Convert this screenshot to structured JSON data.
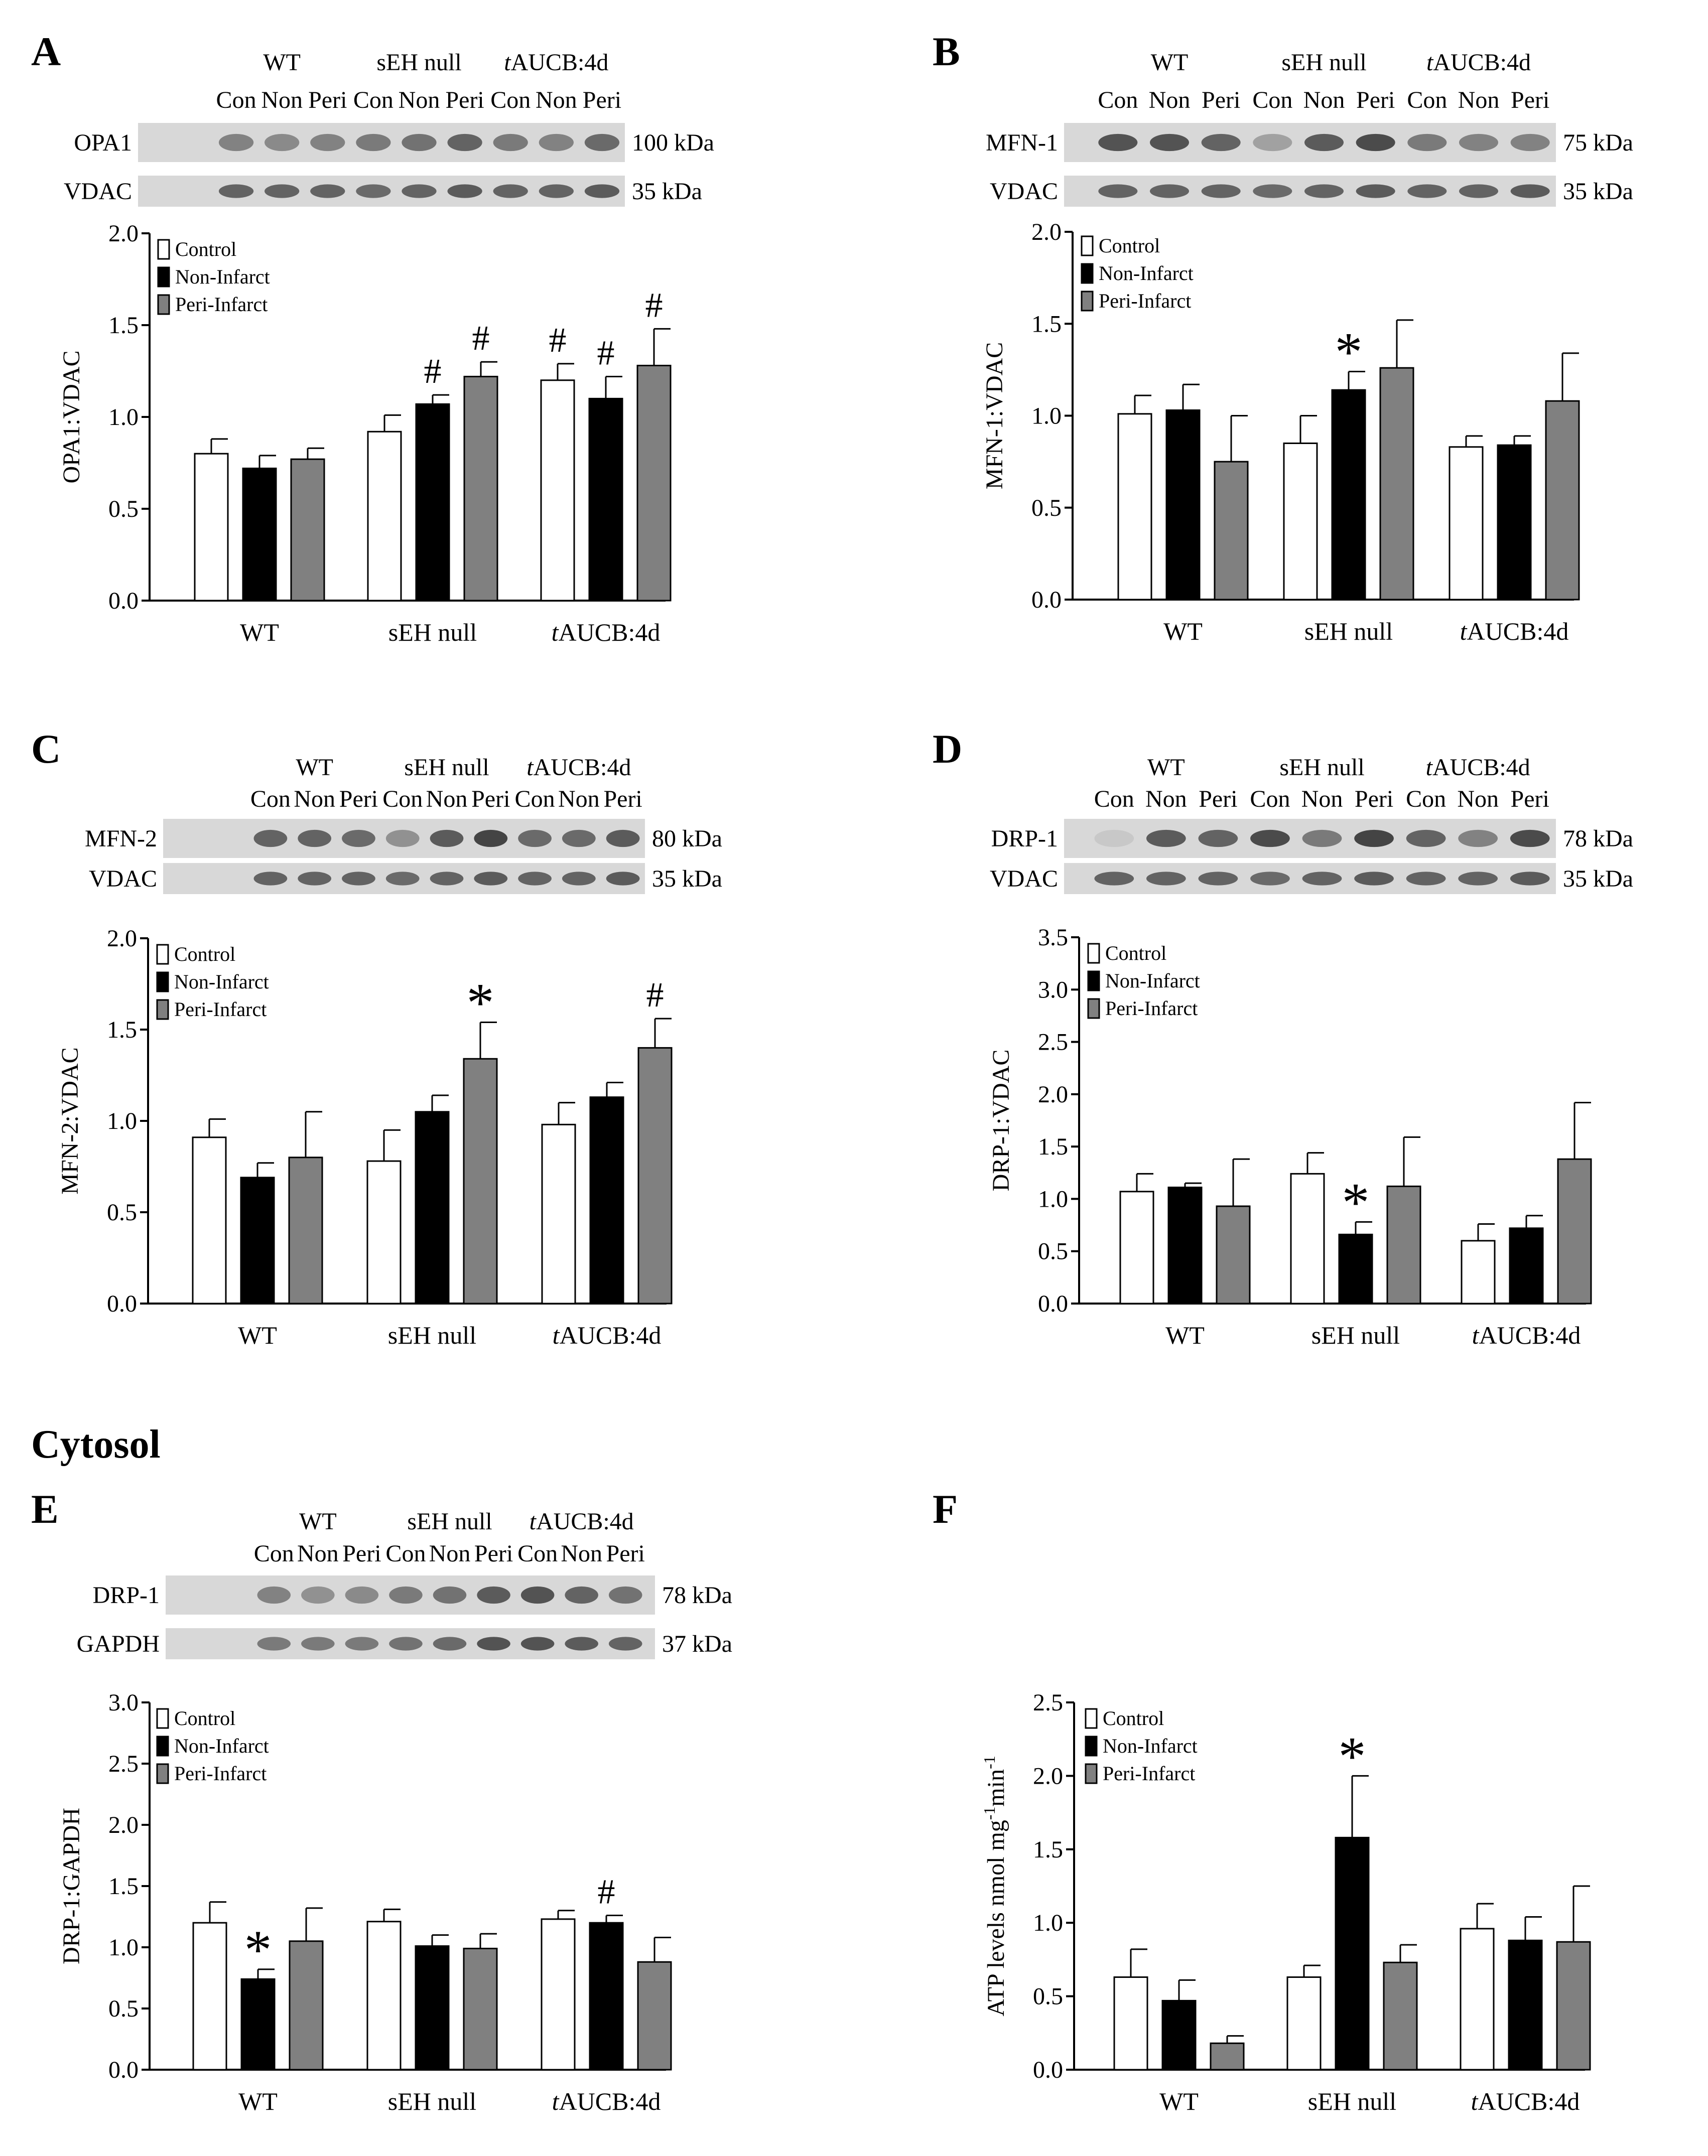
{
  "section_title": "Cytosol",
  "blot_colors": {
    "band": "#3c3c3c",
    "background": "#d8d8d8"
  },
  "legend": [
    {
      "label": "Control",
      "color": "#ffffff"
    },
    {
      "label": "Non-Infarct",
      "color": "#000000"
    },
    {
      "label": "Peri-Infarct",
      "color": "#808080"
    }
  ],
  "chart_data": [
    {
      "panel": "A",
      "type": "bar",
      "groups": [
        [
          "WT",
          ""
        ],
        [
          "sEH null",
          ""
        ],
        [
          "t",
          "AUCB:4d"
        ]
      ],
      "lanes": [
        "Con",
        "Non",
        "Peri"
      ],
      "blots": [
        {
          "label": "OPA1",
          "kda": "100 kDa",
          "intensity": [
            0.55,
            0.5,
            0.55,
            0.6,
            0.65,
            0.75,
            0.6,
            0.55,
            0.7
          ]
        },
        {
          "label": "VDAC",
          "kda": "35 kDa",
          "intensity": [
            0.75,
            0.75,
            0.75,
            0.7,
            0.75,
            0.8,
            0.75,
            0.75,
            0.8
          ]
        }
      ],
      "ylabel": "OPA1:VDAC",
      "ylim": [
        0,
        2.0
      ],
      "ticks": [
        "0.0",
        "0.5",
        "1.0",
        "1.5",
        "2.0"
      ],
      "xcats": [
        [
          "WT",
          ""
        ],
        [
          "sEH null",
          ""
        ],
        [
          "t",
          "AUCB:4d"
        ]
      ],
      "series": [
        {
          "name": "Control",
          "values": [
            0.8,
            0.92,
            1.2
          ],
          "errors": [
            0.08,
            0.09,
            0.09
          ]
        },
        {
          "name": "Non-Infarct",
          "values": [
            0.72,
            1.07,
            1.1
          ],
          "errors": [
            0.07,
            0.05,
            0.12
          ]
        },
        {
          "name": "Peri-Infarct",
          "values": [
            0.77,
            1.22,
            1.28
          ],
          "errors": [
            0.06,
            0.08,
            0.2
          ]
        }
      ],
      "marks": [
        {
          "group": 1,
          "series": 1,
          "symbol": "#"
        },
        {
          "group": 1,
          "series": 2,
          "symbol": "#"
        },
        {
          "group": 2,
          "series": 0,
          "symbol": "#"
        },
        {
          "group": 2,
          "series": 1,
          "symbol": "#"
        },
        {
          "group": 2,
          "series": 2,
          "symbol": "#"
        }
      ]
    },
    {
      "panel": "B",
      "type": "bar",
      "groups": [
        [
          "WT",
          ""
        ],
        [
          "sEH null",
          ""
        ],
        [
          "t",
          "AUCB:4d"
        ]
      ],
      "lanes": [
        "Con",
        "Non",
        "Peri"
      ],
      "blots": [
        {
          "label": "MFN-1",
          "kda": "75 kDa",
          "intensity": [
            0.85,
            0.85,
            0.75,
            0.35,
            0.8,
            0.9,
            0.6,
            0.55,
            0.55
          ]
        },
        {
          "label": "VDAC",
          "kda": "35 kDa",
          "intensity": [
            0.75,
            0.75,
            0.75,
            0.7,
            0.75,
            0.8,
            0.75,
            0.75,
            0.8
          ]
        }
      ],
      "ylabel": "MFN-1:VDAC",
      "ylim": [
        0,
        2.0
      ],
      "ticks": [
        "0.0",
        "0.5",
        "1.0",
        "1.5",
        "2.0"
      ],
      "xcats": [
        [
          "WT",
          ""
        ],
        [
          "sEH null",
          ""
        ],
        [
          "t",
          "AUCB:4d"
        ]
      ],
      "series": [
        {
          "name": "Control",
          "values": [
            1.01,
            0.85,
            0.83
          ],
          "errors": [
            0.1,
            0.15,
            0.06
          ]
        },
        {
          "name": "Non-Infarct",
          "values": [
            1.03,
            1.14,
            0.84
          ],
          "errors": [
            0.14,
            0.1,
            0.05
          ]
        },
        {
          "name": "Peri-Infarct",
          "values": [
            0.75,
            1.26,
            1.08
          ],
          "errors": [
            0.25,
            0.26,
            0.26
          ]
        }
      ],
      "marks": [
        {
          "group": 1,
          "series": 1,
          "symbol": "*"
        }
      ]
    },
    {
      "panel": "C",
      "type": "bar",
      "groups": [
        [
          "WT",
          ""
        ],
        [
          "sEH null",
          ""
        ],
        [
          "t",
          "AUCB:4d"
        ]
      ],
      "lanes": [
        "Con",
        "Non",
        "Peri"
      ],
      "blots": [
        {
          "label": "MFN-2",
          "kda": "80 kDa",
          "intensity": [
            0.75,
            0.75,
            0.7,
            0.45,
            0.8,
            0.95,
            0.7,
            0.7,
            0.8
          ]
        },
        {
          "label": "VDAC",
          "kda": "35 kDa",
          "intensity": [
            0.75,
            0.75,
            0.75,
            0.7,
            0.75,
            0.8,
            0.75,
            0.75,
            0.8
          ]
        }
      ],
      "ylabel": "MFN-2:VDAC",
      "ylim": [
        0,
        2.0
      ],
      "ticks": [
        "0.0",
        "0.5",
        "1.0",
        "1.5",
        "2.0"
      ],
      "xcats": [
        [
          "WT",
          ""
        ],
        [
          "sEH null",
          ""
        ],
        [
          "t",
          "AUCB:4d"
        ]
      ],
      "series": [
        {
          "name": "Control",
          "values": [
            0.91,
            0.78,
            0.98
          ],
          "errors": [
            0.1,
            0.17,
            0.12
          ]
        },
        {
          "name": "Non-Infarct",
          "values": [
            0.69,
            1.05,
            1.13
          ],
          "errors": [
            0.08,
            0.09,
            0.08
          ]
        },
        {
          "name": "Peri-Infarct",
          "values": [
            0.8,
            1.34,
            1.4
          ],
          "errors": [
            0.25,
            0.2,
            0.16
          ]
        }
      ],
      "marks": [
        {
          "group": 1,
          "series": 2,
          "symbol": "*"
        },
        {
          "group": 2,
          "series": 2,
          "symbol": "#"
        }
      ]
    },
    {
      "panel": "D",
      "type": "bar",
      "groups": [
        [
          "WT",
          ""
        ],
        [
          "sEH null",
          ""
        ],
        [
          "t",
          "AUCB:4d"
        ]
      ],
      "lanes": [
        "Con",
        "Non",
        "Peri"
      ],
      "blots": [
        {
          "label": "DRP-1",
          "kda": "78 kDa",
          "intensity": [
            0.1,
            0.8,
            0.75,
            0.9,
            0.6,
            0.95,
            0.75,
            0.55,
            0.9
          ]
        },
        {
          "label": "VDAC",
          "kda": "35 kDa",
          "intensity": [
            0.75,
            0.75,
            0.75,
            0.7,
            0.75,
            0.8,
            0.75,
            0.75,
            0.8
          ]
        }
      ],
      "ylabel": "DRP-1:VDAC",
      "ylim": [
        0,
        3.5
      ],
      "ticks": [
        "0.0",
        "0.5",
        "1.0",
        "1.5",
        "2.0",
        "2.5",
        "3.0",
        "3.5"
      ],
      "xcats": [
        [
          "WT",
          ""
        ],
        [
          "sEH null",
          ""
        ],
        [
          "t",
          "AUCB:4d"
        ]
      ],
      "series": [
        {
          "name": "Control",
          "values": [
            1.07,
            1.24,
            0.6
          ],
          "errors": [
            0.17,
            0.2,
            0.16
          ]
        },
        {
          "name": "Non-Infarct",
          "values": [
            1.11,
            0.66,
            0.72
          ],
          "errors": [
            0.04,
            0.12,
            0.12
          ]
        },
        {
          "name": "Peri-Infarct",
          "values": [
            0.93,
            1.12,
            1.38
          ],
          "errors": [
            0.45,
            0.47,
            0.54
          ]
        }
      ],
      "marks": [
        {
          "group": 1,
          "series": 1,
          "symbol": "*"
        }
      ]
    },
    {
      "panel": "E",
      "type": "bar",
      "groups": [
        [
          "WT",
          ""
        ],
        [
          "sEH null",
          ""
        ],
        [
          "t",
          "AUCB:4d"
        ]
      ],
      "lanes": [
        "Con",
        "Non",
        "Peri"
      ],
      "blots": [
        {
          "label": "DRP-1",
          "kda": "78 kDa",
          "intensity": [
            0.55,
            0.45,
            0.5,
            0.6,
            0.65,
            0.8,
            0.85,
            0.75,
            0.65
          ]
        },
        {
          "label": "GAPDH",
          "kda": "37 kDa",
          "intensity": [
            0.6,
            0.6,
            0.6,
            0.65,
            0.7,
            0.85,
            0.85,
            0.8,
            0.75
          ]
        }
      ],
      "ylabel": "DRP-1:GAPDH",
      "ylim": [
        0,
        3.0
      ],
      "ticks": [
        "0.0",
        "0.5",
        "1.0",
        "1.5",
        "2.0",
        "2.5",
        "3.0"
      ],
      "xcats": [
        [
          "WT",
          ""
        ],
        [
          "sEH null",
          ""
        ],
        [
          "t",
          "AUCB:4d"
        ]
      ],
      "series": [
        {
          "name": "Control",
          "values": [
            1.2,
            1.21,
            1.23
          ],
          "errors": [
            0.17,
            0.1,
            0.07
          ]
        },
        {
          "name": "Non-Infarct",
          "values": [
            0.74,
            1.01,
            1.2
          ],
          "errors": [
            0.08,
            0.09,
            0.06
          ]
        },
        {
          "name": "Peri-Infarct",
          "values": [
            1.05,
            0.99,
            0.88
          ],
          "errors": [
            0.27,
            0.12,
            0.2
          ]
        }
      ],
      "marks": [
        {
          "group": 0,
          "series": 1,
          "symbol": "*"
        },
        {
          "group": 2,
          "series": 1,
          "symbol": "#"
        }
      ]
    },
    {
      "panel": "F",
      "type": "bar",
      "groups": [],
      "lanes": [],
      "blots": [],
      "ylabel": "ATP levels nmol mg",
      "ylabel_sup1": "-1",
      "ylabel_mid": "min",
      "ylabel_sup2": "-1",
      "ylim": [
        0,
        2.5
      ],
      "ticks": [
        "0.0",
        "0.5",
        "1.0",
        "1.5",
        "2.0",
        "2.5"
      ],
      "xcats": [
        [
          "WT",
          ""
        ],
        [
          "sEH null",
          ""
        ],
        [
          "t",
          "AUCB:4d"
        ]
      ],
      "series": [
        {
          "name": "Control",
          "values": [
            0.63,
            0.63,
            0.96
          ],
          "errors": [
            0.19,
            0.08,
            0.17
          ]
        },
        {
          "name": "Non-Infarct",
          "values": [
            0.47,
            1.58,
            0.88
          ],
          "errors": [
            0.14,
            0.42,
            0.16
          ]
        },
        {
          "name": "Peri-Infarct",
          "values": [
            0.18,
            0.73,
            0.87
          ],
          "errors": [
            0.05,
            0.12,
            0.38
          ]
        }
      ],
      "marks": [
        {
          "group": 1,
          "series": 1,
          "symbol": "*"
        }
      ]
    }
  ]
}
